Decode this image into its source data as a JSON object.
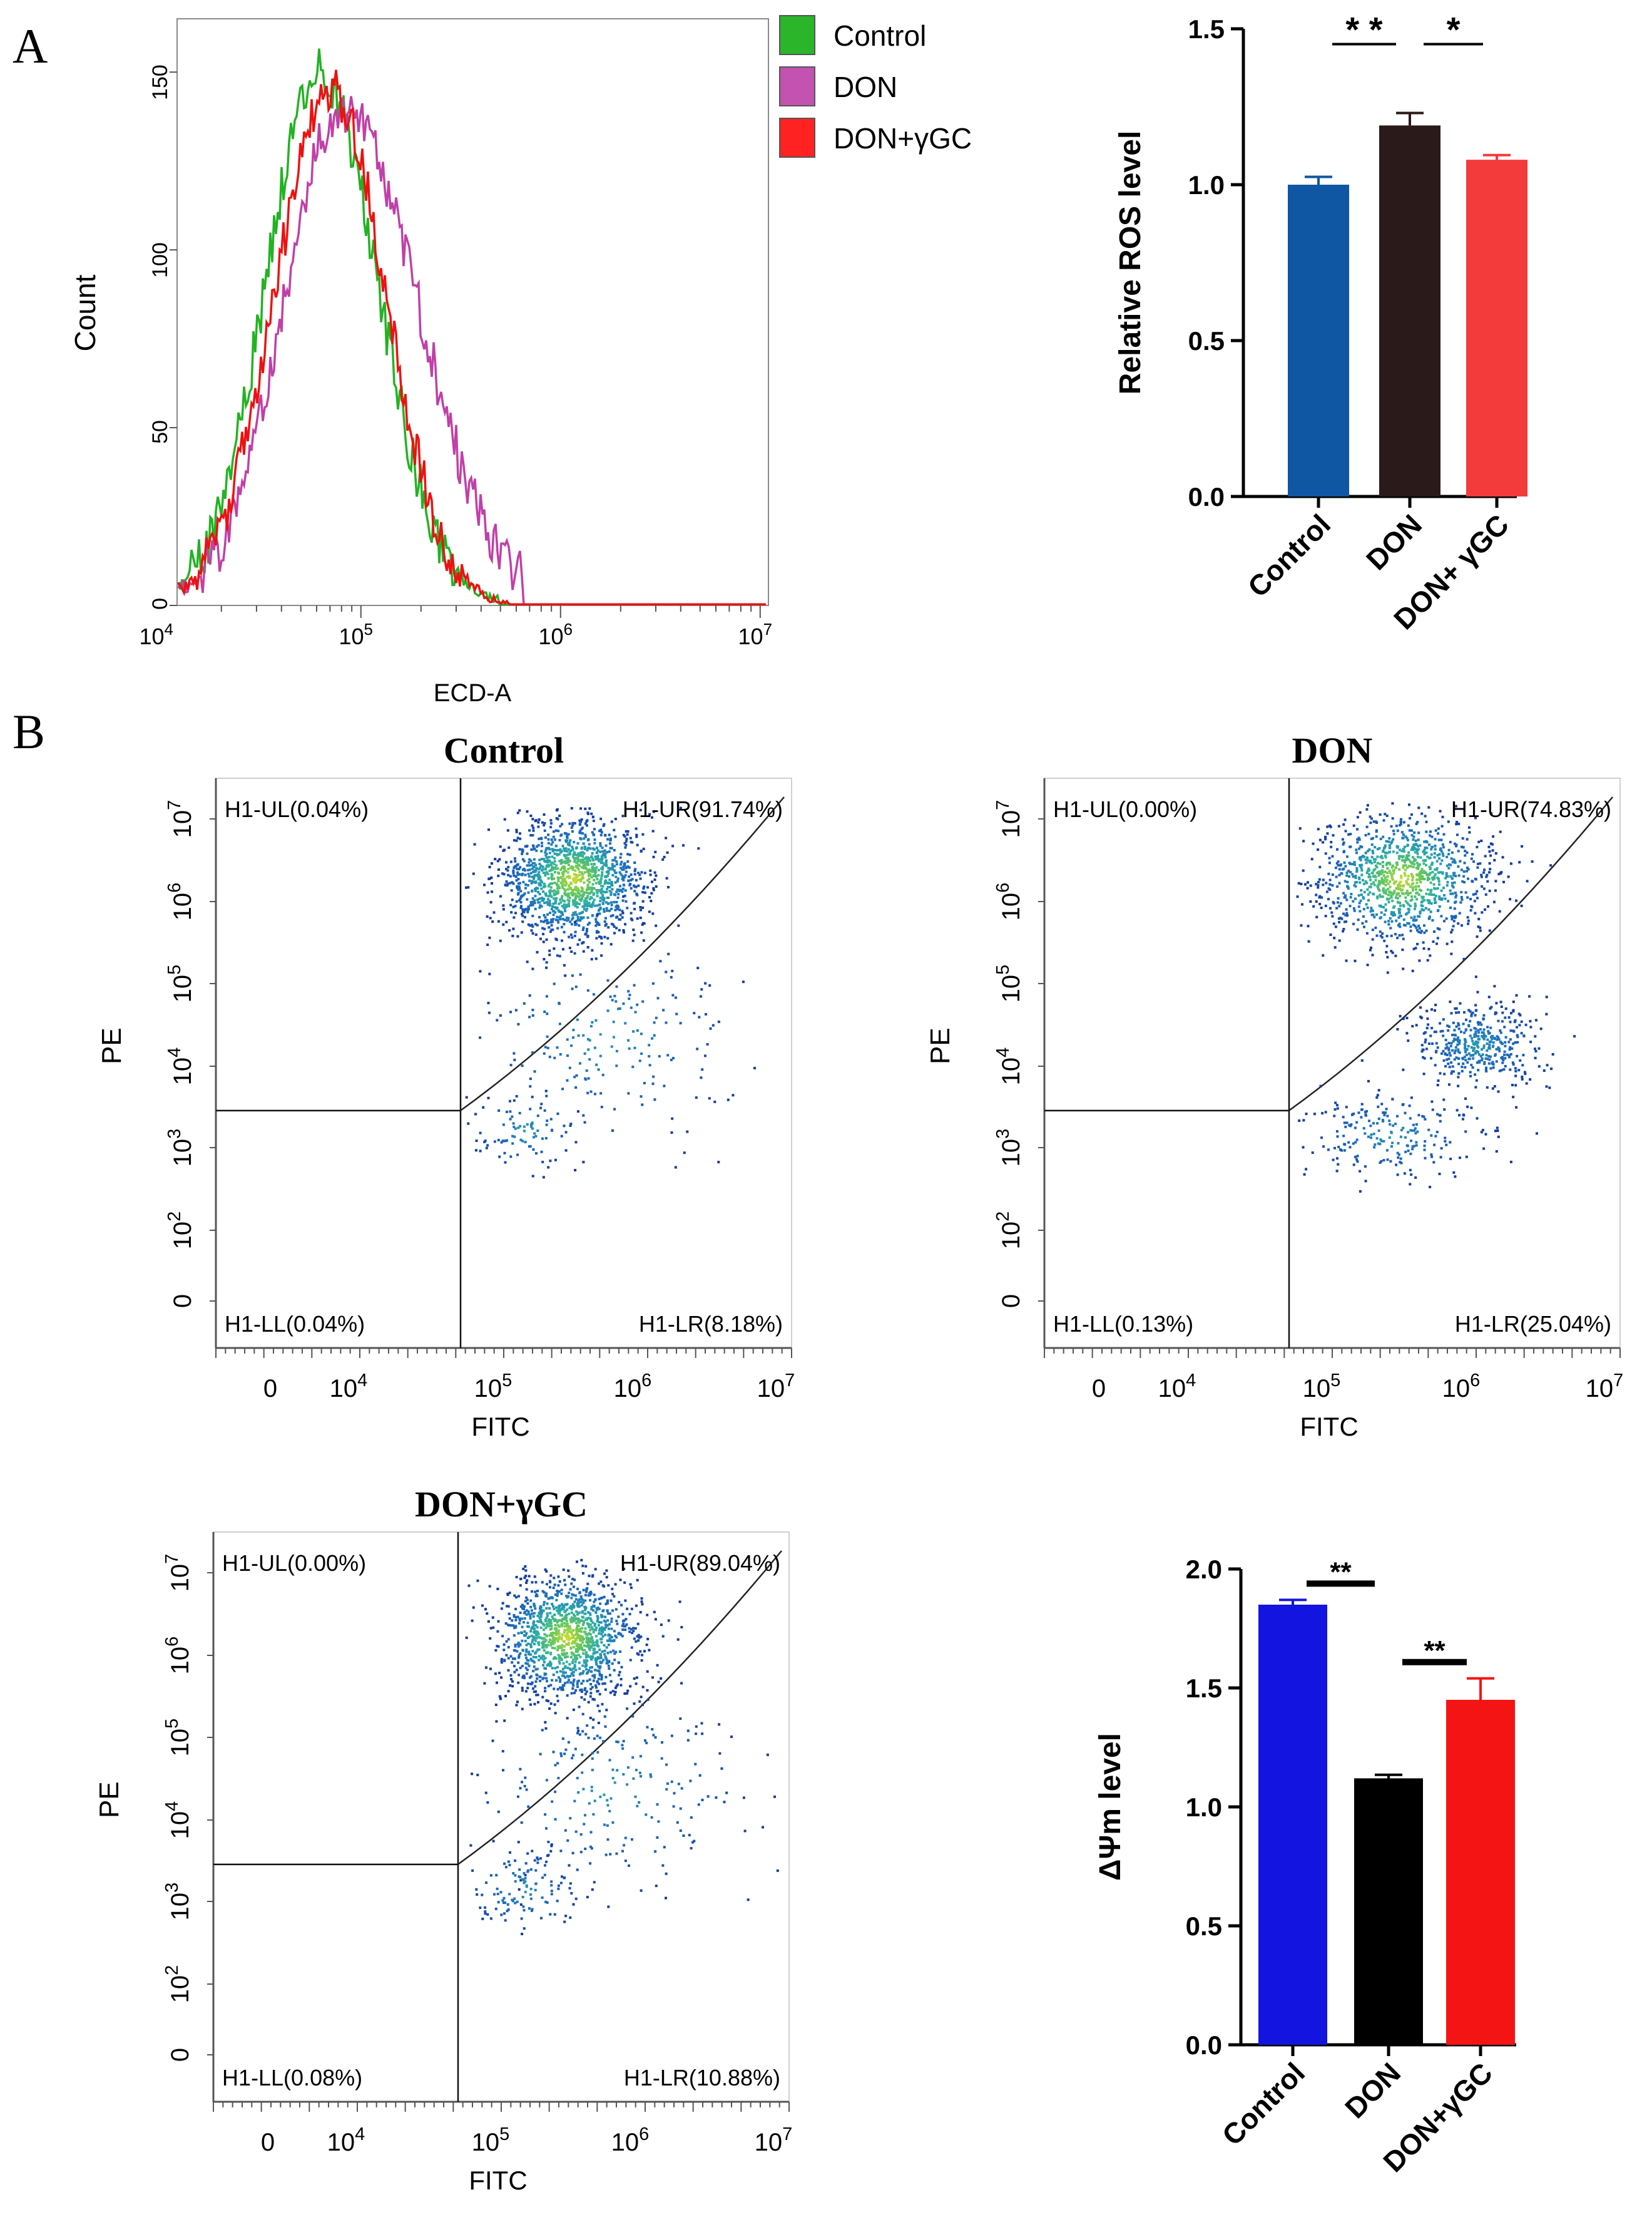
{
  "figure": {
    "panel_a_label": "A",
    "panel_b_label": "B"
  },
  "chart_data": [
    {
      "id": "histogram",
      "type": "line",
      "title": "",
      "xlabel": "ECD-A",
      "ylabel": "Count",
      "x_scale": "log",
      "xlim": [
        12000,
        11000000
      ],
      "ylim": [
        0,
        165
      ],
      "x_ticks": [
        {
          "value": 10000,
          "base": "10",
          "exp": "4"
        },
        {
          "value": 100000,
          "base": "10",
          "exp": "5"
        },
        {
          "value": 1000000,
          "base": "10",
          "exp": "6"
        },
        {
          "value": 10000000,
          "base": "10",
          "exp": "7"
        }
      ],
      "y_ticks": [
        0,
        50,
        100,
        150
      ],
      "legend": {
        "position": "outside-right"
      },
      "series": [
        {
          "name": "Control",
          "color": "#22b322",
          "fill": "#2ab52a",
          "peak_x": 62000,
          "peak_y": 150,
          "log_sigma": 0.27,
          "skew": 0.02
        },
        {
          "name": "DON",
          "color": "#c040a8",
          "fill": "#c452b0",
          "peak_x": 82000,
          "peak_y": 140,
          "log_sigma": 0.3,
          "skew": 0.06
        },
        {
          "name": "DON+γGC",
          "color": "#ee1111",
          "fill": "#ff2222",
          "peak_x": 70000,
          "peak_y": 145,
          "log_sigma": 0.28,
          "skew": 0.0
        }
      ]
    },
    {
      "id": "ros-bars",
      "type": "bar",
      "title": "",
      "xlabel": "",
      "ylabel": "Relative ROS level",
      "ylim": [
        0,
        1.5
      ],
      "y_ticks": [
        "0.0",
        "0.5",
        "1.0",
        "1.5"
      ],
      "categories": [
        "Control",
        "DON",
        "DON+ γGC"
      ],
      "values": [
        1.0,
        1.19,
        1.08
      ],
      "errors": [
        0.025,
        0.04,
        0.015
      ],
      "colors": [
        "#0f56a3",
        "#2b1a1a",
        "#f33b3b"
      ],
      "significance": [
        {
          "from": 0,
          "to": 1,
          "label": "* *"
        },
        {
          "from": 1,
          "to": 2,
          "label": "*"
        }
      ]
    },
    {
      "id": "scatter-control",
      "type": "scatter",
      "title": "Control",
      "xlabel": "FITC",
      "ylabel": "PE",
      "quadrants": {
        "UL": "H1-UL(0.04%)",
        "UR": "H1-UR(91.74%)",
        "LL": "H1-LL(0.04%)",
        "LR": "H1-LR(8.18%)"
      },
      "x_ticks": [
        "0",
        "10^4",
        "10^5",
        "10^6",
        "10^7"
      ],
      "y_ticks": [
        "0",
        "10^2",
        "10^3",
        "10^4",
        "10^5",
        "10^6",
        "10^7"
      ],
      "clusters": [
        {
          "cx": 5.48,
          "cy": 5.95,
          "sx": 0.25,
          "sy": 0.33,
          "n": 1400
        },
        {
          "cx": 5.7,
          "cy": 4.3,
          "sx": 0.45,
          "sy": 0.55,
          "n": 200
        },
        {
          "cx": 5.15,
          "cy": 3.3,
          "sx": 0.18,
          "sy": 0.2,
          "n": 90
        }
      ]
    },
    {
      "id": "scatter-don",
      "type": "scatter",
      "title": "DON",
      "xlabel": "FITC",
      "ylabel": "PE",
      "quadrants": {
        "UL": "H1-UL(0.00%)",
        "UR": "H1-UR(74.83%)",
        "LL": "H1-LL(0.13%)",
        "LR": "H1-LR(25.04%)"
      },
      "x_ticks": [
        "0",
        "10^4",
        "10^5",
        "10^6",
        "10^7"
      ],
      "y_ticks": [
        "0",
        "10^2",
        "10^3",
        "10^4",
        "10^5",
        "10^6",
        "10^7"
      ],
      "clusters": [
        {
          "cx": 5.48,
          "cy": 5.95,
          "sx": 0.3,
          "sy": 0.35,
          "n": 1100
        },
        {
          "cx": 6.0,
          "cy": 4.2,
          "sx": 0.22,
          "sy": 0.22,
          "n": 420
        },
        {
          "cx": 5.4,
          "cy": 3.25,
          "sx": 0.3,
          "sy": 0.22,
          "n": 220
        }
      ]
    },
    {
      "id": "scatter-don-ygc",
      "type": "scatter",
      "title": "DON+γGC",
      "xlabel": "FITC",
      "ylabel": "PE",
      "quadrants": {
        "UL": "H1-UL(0.00%)",
        "UR": "H1-UR(89.04%)",
        "LL": "H1-LL(0.08%)",
        "LR": "H1-LR(10.88%)"
      },
      "x_ticks": [
        "0",
        "10^4",
        "10^5",
        "10^6",
        "10^7"
      ],
      "y_ticks": [
        "0",
        "10^2",
        "10^3",
        "10^4",
        "10^5",
        "10^6",
        "10^7"
      ],
      "clusters": [
        {
          "cx": 5.45,
          "cy": 5.9,
          "sx": 0.25,
          "sy": 0.33,
          "n": 1300
        },
        {
          "cx": 5.75,
          "cy": 4.3,
          "sx": 0.45,
          "sy": 0.55,
          "n": 220
        },
        {
          "cx": 5.15,
          "cy": 3.25,
          "sx": 0.2,
          "sy": 0.22,
          "n": 120
        }
      ]
    },
    {
      "id": "mmp-bars",
      "type": "bar",
      "title": "",
      "xlabel": "",
      "ylabel": "ΔΨm level",
      "ylim": [
        0,
        2.0
      ],
      "y_ticks": [
        "0.0",
        "0.5",
        "1.0",
        "1.5",
        "2.0"
      ],
      "categories": [
        "Control",
        "DON",
        "DON+γGC"
      ],
      "values": [
        1.85,
        1.12,
        1.45
      ],
      "errors": [
        0.02,
        0.015,
        0.09
      ],
      "colors": [
        "#1414e0",
        "#000000",
        "#f51414"
      ],
      "significance": [
        {
          "from": 0,
          "to": 1,
          "label": "**"
        },
        {
          "from": 1,
          "to": 2,
          "label": "**"
        }
      ]
    }
  ]
}
